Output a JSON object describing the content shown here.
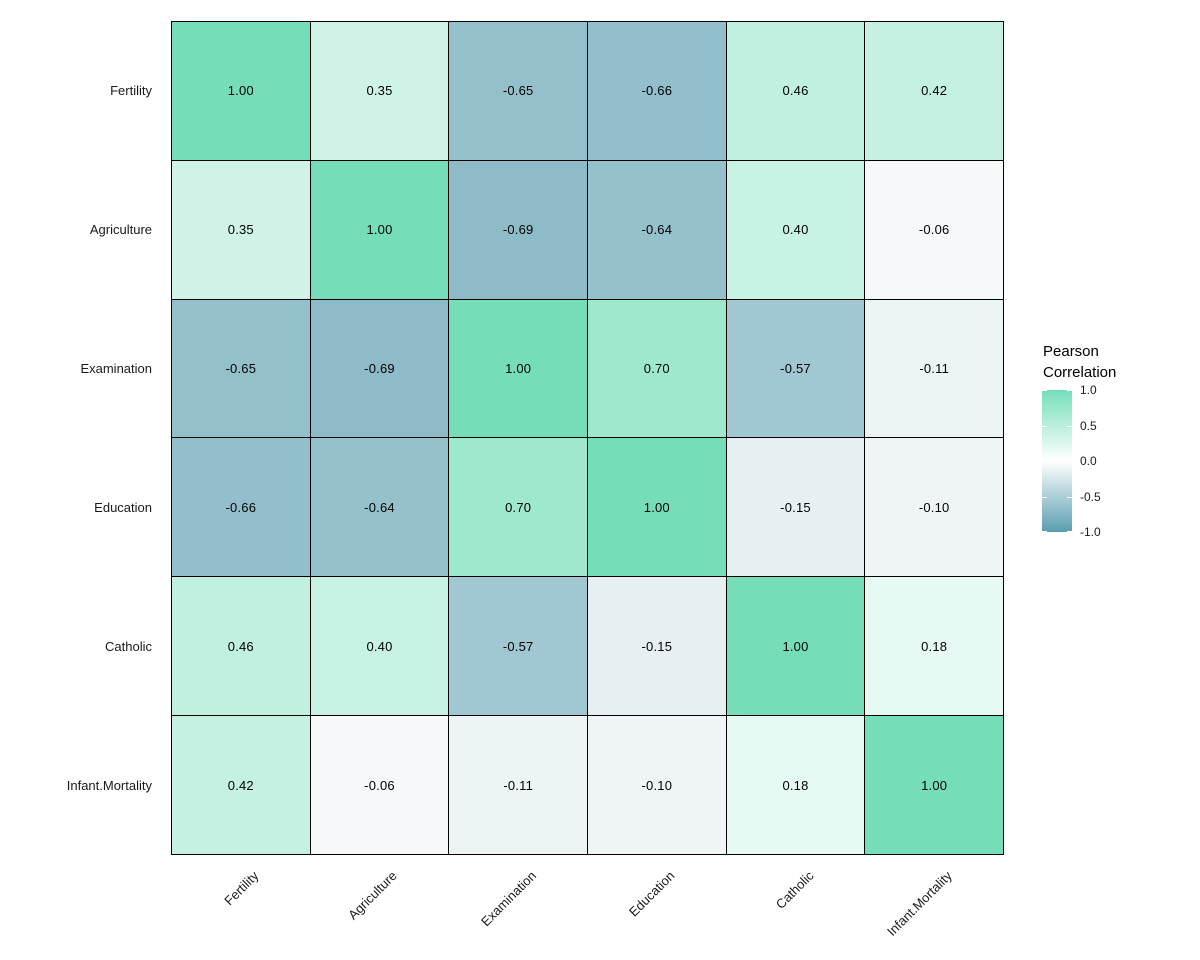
{
  "figure": {
    "background": "#FFFFFF"
  },
  "chart_data": {
    "type": "heatmap",
    "title": "",
    "x_categories": [
      "Fertility",
      "Agriculture",
      "Examination",
      "Education",
      "Catholic",
      "Infant.Mortality"
    ],
    "y_categories_top_to_bottom": [
      "Fertility",
      "Agriculture",
      "Examination",
      "Education",
      "Catholic",
      "Infant.Mortality"
    ],
    "matrix_rows_top_to_bottom": [
      [
        1.0,
        0.35,
        -0.65,
        -0.66,
        0.46,
        0.42
      ],
      [
        0.35,
        1.0,
        -0.69,
        -0.64,
        0.4,
        -0.06
      ],
      [
        -0.65,
        -0.69,
        1.0,
        0.7,
        -0.57,
        -0.11
      ],
      [
        -0.66,
        -0.64,
        0.7,
        1.0,
        -0.15,
        -0.1
      ],
      [
        0.46,
        0.4,
        -0.57,
        -0.15,
        1.0,
        0.18
      ],
      [
        0.42,
        -0.06,
        -0.11,
        -0.1,
        0.18,
        1.0
      ]
    ],
    "value_decimals": 2,
    "x_label_angle_degrees": 45,
    "grid_on": false,
    "color_scale": {
      "positive_end": "#75DEB9",
      "midpoint": "#FFFFFF",
      "negative_end": "#5A9EB0",
      "domain": [
        -1,
        1
      ]
    },
    "cell_border_color": "#000000",
    "cell_text_color": "#000000",
    "axis_text_color": "#1A1A1A",
    "legend": {
      "position": "right",
      "title_lines": [
        "Pearson",
        "Correlation"
      ],
      "tick_labels": [
        "1.0",
        "0.5",
        "0.0",
        "-0.5",
        "-1.0"
      ],
      "tick_values": [
        1.0,
        0.5,
        0.0,
        -0.5,
        -1.0
      ]
    }
  }
}
